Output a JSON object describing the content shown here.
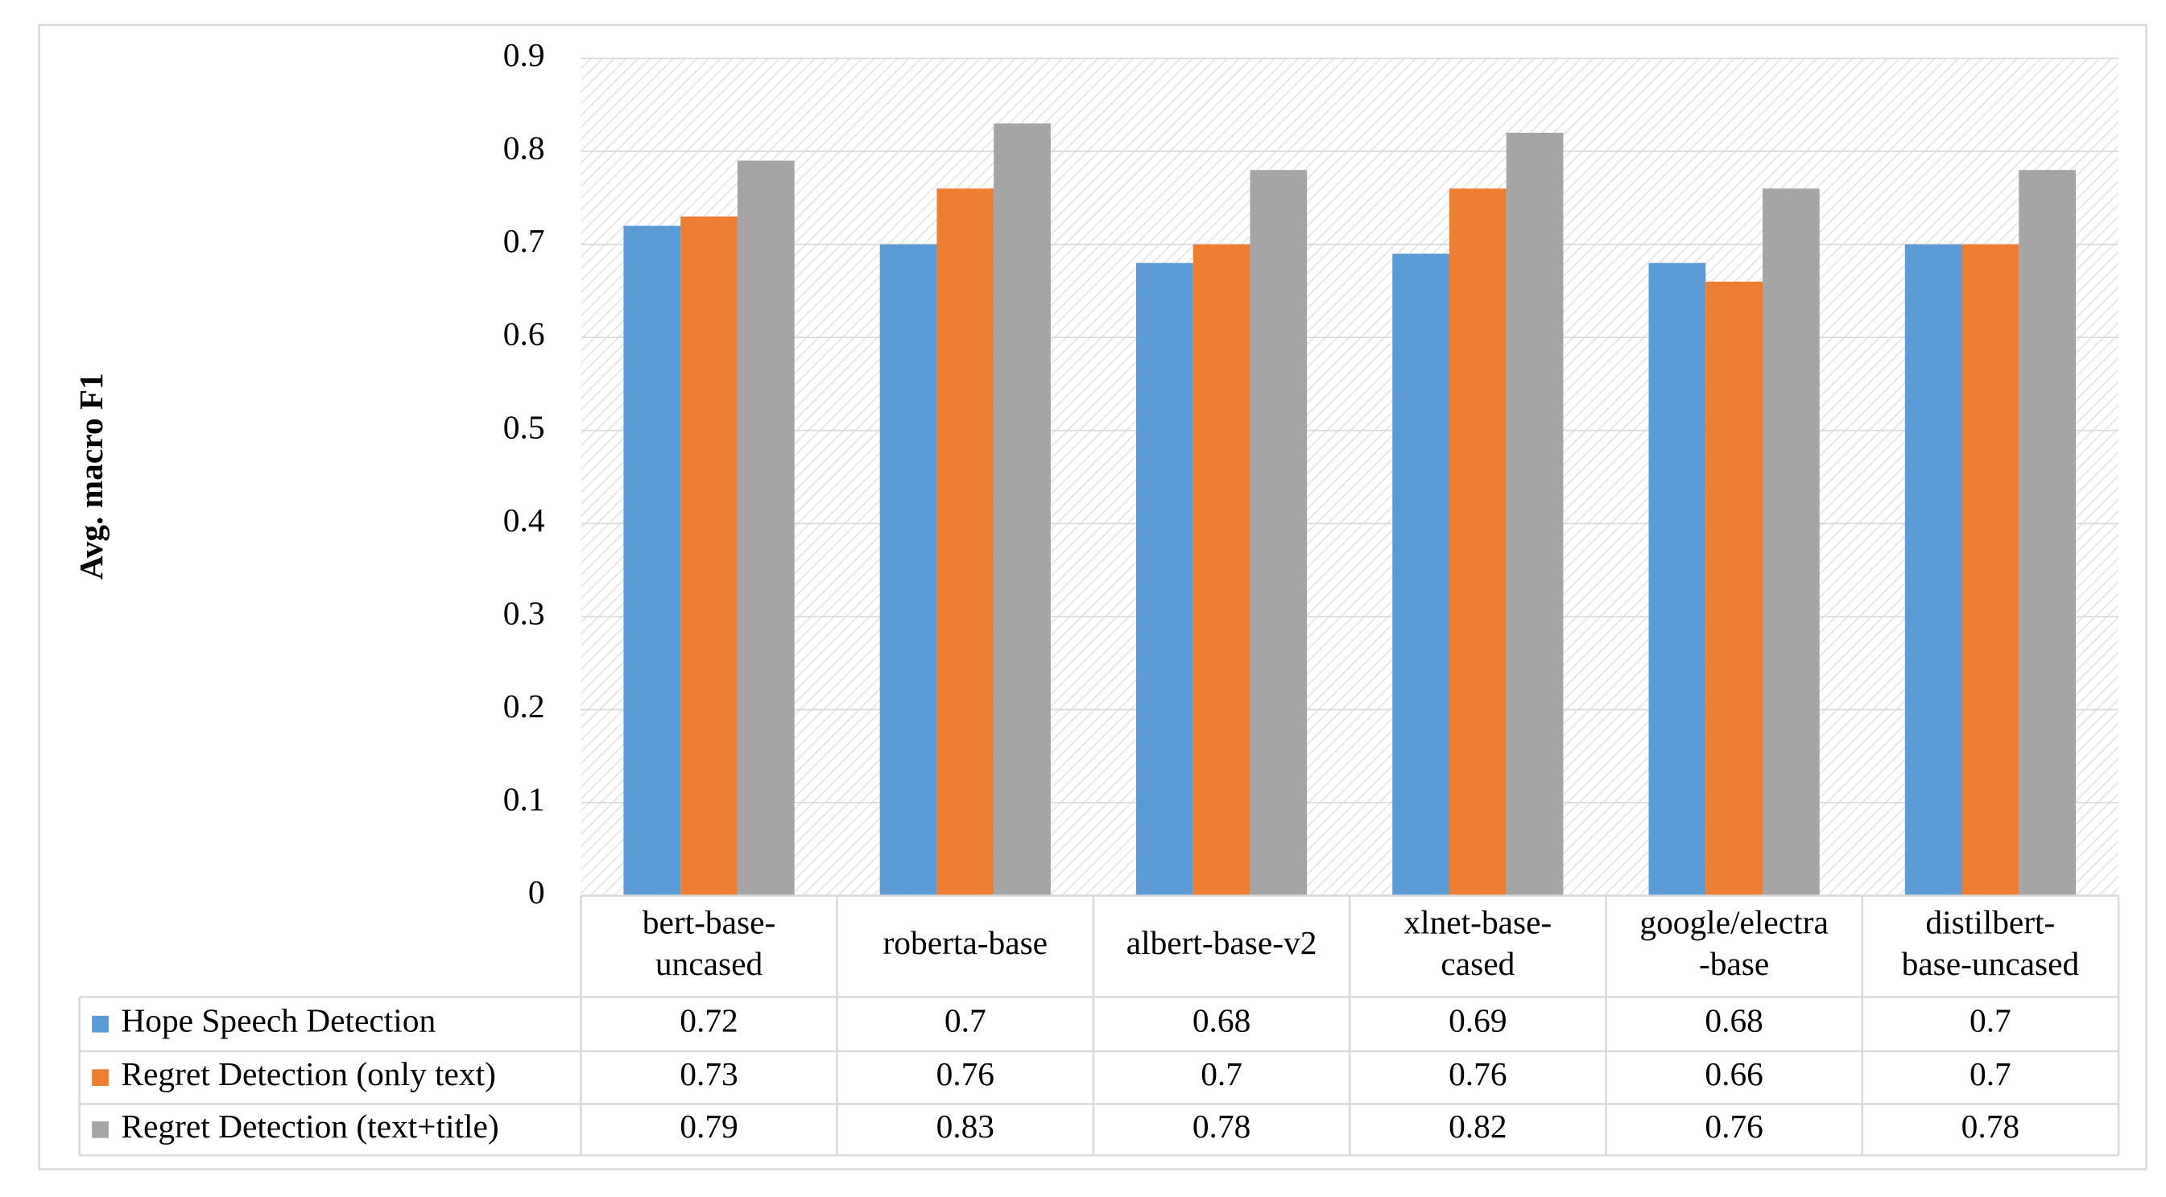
{
  "chart_data": {
    "type": "bar",
    "y_label": "Avg. macro F1",
    "categories": [
      [
        "bert-base-",
        "uncased"
      ],
      [
        "roberta-base"
      ],
      [
        "albert-base-v2"
      ],
      [
        "xlnet-base-",
        "cased"
      ],
      [
        "google/electra",
        "-base"
      ],
      [
        "distilbert-",
        "base-uncased"
      ]
    ],
    "series": [
      {
        "name": "Hope Speech Detection",
        "color": "#5b9bd5",
        "values": [
          0.72,
          0.7,
          0.68,
          0.69,
          0.68,
          0.7
        ]
      },
      {
        "name": "Regret Detection (only text)",
        "color": "#ed7d31",
        "values": [
          0.73,
          0.76,
          0.7,
          0.76,
          0.66,
          0.7
        ]
      },
      {
        "name": "Regret Detection (text+title)",
        "color": "#a5a5a5",
        "values": [
          0.79,
          0.83,
          0.78,
          0.82,
          0.76,
          0.78
        ]
      }
    ],
    "ylim": [
      0,
      0.9
    ],
    "yticks": [
      0,
      0.1,
      0.2,
      0.3,
      0.4,
      0.5,
      0.6,
      0.7,
      0.8,
      0.9
    ],
    "grid": true,
    "data_table": true
  }
}
